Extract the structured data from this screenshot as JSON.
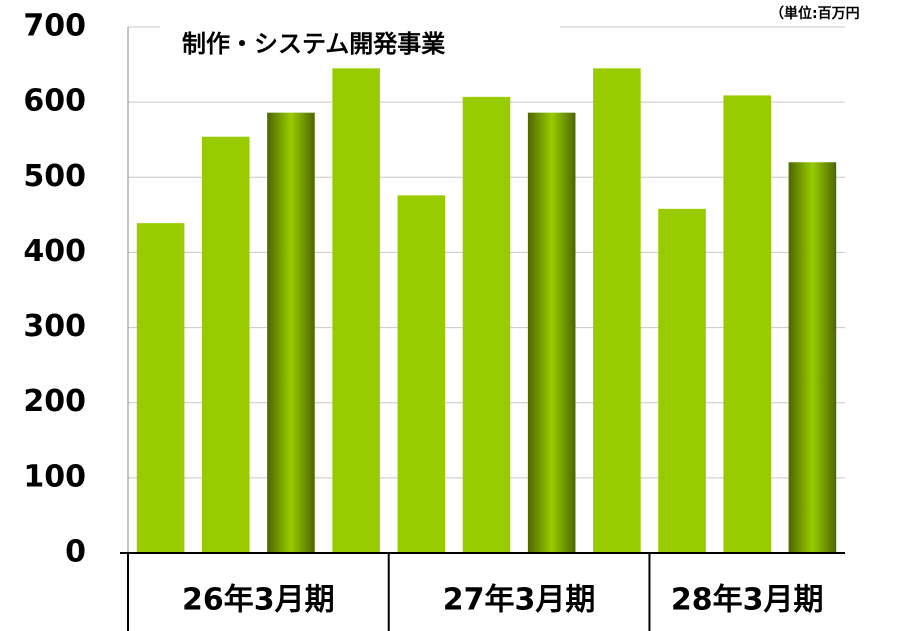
{
  "chart_data": {
    "type": "bar",
    "title": "制作・システム開発事業",
    "unit_label": "（単位:百万円",
    "color": "#99cc00",
    "groups": [
      {
        "label": "26年3月期",
        "values": [
          439,
          554,
          586,
          645
        ],
        "colors": [
          "#99cc00",
          "#99cc00",
          "#4d6600",
          "#99cc00"
        ]
      },
      {
        "label": "27年3月期",
        "values": [
          476,
          607,
          586,
          645
        ],
        "colors": [
          "#99cc00",
          "#99cc00",
          "#4d6600",
          "#99cc00"
        ]
      },
      {
        "label": "28年3月期",
        "values": [
          458,
          609,
          520
        ],
        "colors": [
          "#99cc00",
          "#99cc00",
          "#4d6600"
        ]
      }
    ],
    "ylim": [
      0,
      700
    ],
    "yticks": [
      0,
      100,
      200,
      300,
      400,
      500,
      600,
      700
    ],
    "grid": true
  }
}
